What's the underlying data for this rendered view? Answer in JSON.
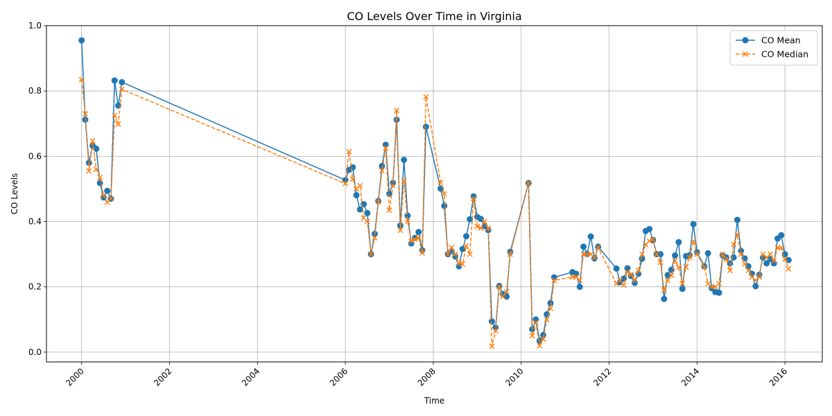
{
  "chart_data": {
    "type": "line",
    "title": "CO Levels Over Time in Virginia",
    "xlabel": "Time",
    "ylabel": "CO Levels",
    "xlim": [
      1999.2,
      2016.85
    ],
    "ylim": [
      -0.03,
      1.0
    ],
    "x_ticks": [
      "2000",
      "2002",
      "2004",
      "2006",
      "2008",
      "2010",
      "2012",
      "2014",
      "2016"
    ],
    "y_ticks": [
      "0.0",
      "0.2",
      "0.4",
      "0.6",
      "0.8",
      "1.0"
    ],
    "grid": true,
    "legend_position": "top-right",
    "series": [
      {
        "name": "CO Mean",
        "color": "#1f77b4",
        "marker": "circle",
        "line_style": "solid",
        "points": [
          [
            2000.0,
            0.955
          ],
          [
            2000.083,
            0.712
          ],
          [
            2000.167,
            0.58
          ],
          [
            2000.25,
            0.632
          ],
          [
            2000.333,
            0.623
          ],
          [
            2000.417,
            0.518
          ],
          [
            2000.5,
            0.474
          ],
          [
            2000.583,
            0.494
          ],
          [
            2000.667,
            0.47
          ],
          [
            2000.75,
            0.832
          ],
          [
            2000.833,
            0.755
          ],
          [
            2000.917,
            0.827
          ],
          [
            2006.0,
            0.527
          ],
          [
            2006.083,
            0.558
          ],
          [
            2006.167,
            0.566
          ],
          [
            2006.25,
            0.481
          ],
          [
            2006.333,
            0.437
          ],
          [
            2006.417,
            0.453
          ],
          [
            2006.5,
            0.426
          ],
          [
            2006.583,
            0.3
          ],
          [
            2006.667,
            0.362
          ],
          [
            2006.75,
            0.463
          ],
          [
            2006.833,
            0.57
          ],
          [
            2006.917,
            0.635
          ],
          [
            2007.0,
            0.485
          ],
          [
            2007.083,
            0.518
          ],
          [
            2007.167,
            0.712
          ],
          [
            2007.25,
            0.388
          ],
          [
            2007.333,
            0.589
          ],
          [
            2007.417,
            0.418
          ],
          [
            2007.5,
            0.333
          ],
          [
            2007.583,
            0.35
          ],
          [
            2007.667,
            0.368
          ],
          [
            2007.75,
            0.312
          ],
          [
            2007.833,
            0.69
          ],
          [
            2008.167,
            0.501
          ],
          [
            2008.25,
            0.448
          ],
          [
            2008.333,
            0.3
          ],
          [
            2008.417,
            0.31
          ],
          [
            2008.5,
            0.293
          ],
          [
            2008.583,
            0.263
          ],
          [
            2008.667,
            0.316
          ],
          [
            2008.75,
            0.355
          ],
          [
            2008.833,
            0.407
          ],
          [
            2008.917,
            0.477
          ],
          [
            2009.0,
            0.414
          ],
          [
            2009.083,
            0.408
          ],
          [
            2009.167,
            0.386
          ],
          [
            2009.25,
            0.374
          ],
          [
            2009.333,
            0.094
          ],
          [
            2009.417,
            0.075
          ],
          [
            2009.5,
            0.203
          ],
          [
            2009.583,
            0.178
          ],
          [
            2009.667,
            0.17
          ],
          [
            2009.75,
            0.307
          ],
          [
            2010.167,
            0.518
          ],
          [
            2010.25,
            0.07
          ],
          [
            2010.333,
            0.1
          ],
          [
            2010.417,
            0.035
          ],
          [
            2010.5,
            0.052
          ],
          [
            2010.583,
            0.116
          ],
          [
            2010.667,
            0.15
          ],
          [
            2010.75,
            0.229
          ],
          [
            2011.167,
            0.245
          ],
          [
            2011.25,
            0.24
          ],
          [
            2011.333,
            0.2
          ],
          [
            2011.417,
            0.323
          ],
          [
            2011.5,
            0.301
          ],
          [
            2011.583,
            0.354
          ],
          [
            2011.667,
            0.287
          ],
          [
            2011.75,
            0.323
          ],
          [
            2012.167,
            0.256
          ],
          [
            2012.25,
            0.214
          ],
          [
            2012.333,
            0.225
          ],
          [
            2012.417,
            0.257
          ],
          [
            2012.5,
            0.233
          ],
          [
            2012.583,
            0.212
          ],
          [
            2012.667,
            0.24
          ],
          [
            2012.75,
            0.286
          ],
          [
            2012.833,
            0.371
          ],
          [
            2012.917,
            0.377
          ],
          [
            2013.0,
            0.343
          ],
          [
            2013.083,
            0.3
          ],
          [
            2013.167,
            0.3
          ],
          [
            2013.25,
            0.163
          ],
          [
            2013.333,
            0.236
          ],
          [
            2013.417,
            0.252
          ],
          [
            2013.5,
            0.296
          ],
          [
            2013.583,
            0.337
          ],
          [
            2013.667,
            0.194
          ],
          [
            2013.75,
            0.294
          ],
          [
            2013.833,
            0.297
          ],
          [
            2013.917,
            0.392
          ],
          [
            2014.0,
            0.306
          ],
          [
            2014.167,
            0.263
          ],
          [
            2014.25,
            0.303
          ],
          [
            2014.333,
            0.196
          ],
          [
            2014.417,
            0.184
          ],
          [
            2014.5,
            0.182
          ],
          [
            2014.583,
            0.296
          ],
          [
            2014.667,
            0.29
          ],
          [
            2014.75,
            0.272
          ],
          [
            2014.833,
            0.29
          ],
          [
            2014.917,
            0.405
          ],
          [
            2015.0,
            0.31
          ],
          [
            2015.083,
            0.287
          ],
          [
            2015.167,
            0.263
          ],
          [
            2015.25,
            0.24
          ],
          [
            2015.333,
            0.202
          ],
          [
            2015.417,
            0.237
          ],
          [
            2015.5,
            0.29
          ],
          [
            2015.583,
            0.272
          ],
          [
            2015.667,
            0.285
          ],
          [
            2015.75,
            0.272
          ],
          [
            2015.833,
            0.348
          ],
          [
            2015.917,
            0.358
          ],
          [
            2016.0,
            0.3
          ],
          [
            2016.083,
            0.282
          ]
        ]
      },
      {
        "name": "CO Median",
        "color": "#ff7f0e",
        "marker": "x",
        "line_style": "dashed",
        "points": [
          [
            2000.0,
            0.835
          ],
          [
            2000.083,
            0.73
          ],
          [
            2000.167,
            0.555
          ],
          [
            2000.25,
            0.647
          ],
          [
            2000.333,
            0.56
          ],
          [
            2000.417,
            0.535
          ],
          [
            2000.5,
            0.48
          ],
          [
            2000.583,
            0.459
          ],
          [
            2000.667,
            0.47
          ],
          [
            2000.75,
            0.725
          ],
          [
            2000.833,
            0.698
          ],
          [
            2000.917,
            0.805
          ],
          [
            2006.0,
            0.516
          ],
          [
            2006.083,
            0.614
          ],
          [
            2006.167,
            0.53
          ],
          [
            2006.25,
            0.5
          ],
          [
            2006.333,
            0.51
          ],
          [
            2006.417,
            0.411
          ],
          [
            2006.5,
            0.4
          ],
          [
            2006.583,
            0.3
          ],
          [
            2006.667,
            0.35
          ],
          [
            2006.75,
            0.46
          ],
          [
            2006.833,
            0.556
          ],
          [
            2006.917,
            0.625
          ],
          [
            2007.0,
            0.435
          ],
          [
            2007.083,
            0.51
          ],
          [
            2007.167,
            0.74
          ],
          [
            2007.25,
            0.373
          ],
          [
            2007.333,
            0.525
          ],
          [
            2007.417,
            0.4
          ],
          [
            2007.5,
            0.34
          ],
          [
            2007.583,
            0.346
          ],
          [
            2007.667,
            0.35
          ],
          [
            2007.75,
            0.304
          ],
          [
            2007.833,
            0.782
          ],
          [
            2008.167,
            0.52
          ],
          [
            2008.25,
            0.485
          ],
          [
            2008.333,
            0.3
          ],
          [
            2008.417,
            0.32
          ],
          [
            2008.5,
            0.3
          ],
          [
            2008.583,
            0.272
          ],
          [
            2008.667,
            0.27
          ],
          [
            2008.75,
            0.325
          ],
          [
            2008.833,
            0.3
          ],
          [
            2008.917,
            0.47
          ],
          [
            2009.0,
            0.385
          ],
          [
            2009.083,
            0.38
          ],
          [
            2009.167,
            0.4
          ],
          [
            2009.25,
            0.38
          ],
          [
            2009.333,
            0.018
          ],
          [
            2009.417,
            0.065
          ],
          [
            2009.5,
            0.2
          ],
          [
            2009.583,
            0.17
          ],
          [
            2009.667,
            0.185
          ],
          [
            2009.75,
            0.3
          ],
          [
            2010.167,
            0.518
          ],
          [
            2010.25,
            0.05
          ],
          [
            2010.333,
            0.09
          ],
          [
            2010.417,
            0.02
          ],
          [
            2010.5,
            0.04
          ],
          [
            2010.583,
            0.1
          ],
          [
            2010.667,
            0.134
          ],
          [
            2010.75,
            0.22
          ],
          [
            2011.167,
            0.23
          ],
          [
            2011.25,
            0.23
          ],
          [
            2011.333,
            0.22
          ],
          [
            2011.417,
            0.3
          ],
          [
            2011.5,
            0.3
          ],
          [
            2011.583,
            0.3
          ],
          [
            2011.667,
            0.29
          ],
          [
            2011.75,
            0.32
          ],
          [
            2012.167,
            0.21
          ],
          [
            2012.25,
            0.22
          ],
          [
            2012.333,
            0.205
          ],
          [
            2012.417,
            0.245
          ],
          [
            2012.5,
            0.238
          ],
          [
            2012.583,
            0.22
          ],
          [
            2012.667,
            0.25
          ],
          [
            2012.75,
            0.3
          ],
          [
            2012.833,
            0.33
          ],
          [
            2012.917,
            0.34
          ],
          [
            2013.0,
            0.345
          ],
          [
            2013.083,
            0.3
          ],
          [
            2013.167,
            0.275
          ],
          [
            2013.25,
            0.19
          ],
          [
            2013.333,
            0.22
          ],
          [
            2013.417,
            0.235
          ],
          [
            2013.5,
            0.28
          ],
          [
            2013.583,
            0.26
          ],
          [
            2013.667,
            0.21
          ],
          [
            2013.75,
            0.26
          ],
          [
            2013.833,
            0.29
          ],
          [
            2013.917,
            0.34
          ],
          [
            2014.0,
            0.3
          ],
          [
            2014.167,
            0.26
          ],
          [
            2014.25,
            0.21
          ],
          [
            2014.333,
            0.2
          ],
          [
            2014.417,
            0.2
          ],
          [
            2014.5,
            0.21
          ],
          [
            2014.583,
            0.3
          ],
          [
            2014.667,
            0.285
          ],
          [
            2014.75,
            0.25
          ],
          [
            2014.833,
            0.33
          ],
          [
            2014.917,
            0.36
          ],
          [
            2015.0,
            0.3
          ],
          [
            2015.083,
            0.27
          ],
          [
            2015.167,
            0.25
          ],
          [
            2015.25,
            0.23
          ],
          [
            2015.333,
            0.22
          ],
          [
            2015.417,
            0.23
          ],
          [
            2015.5,
            0.3
          ],
          [
            2015.583,
            0.29
          ],
          [
            2015.667,
            0.3
          ],
          [
            2015.75,
            0.28
          ],
          [
            2015.833,
            0.32
          ],
          [
            2015.917,
            0.32
          ],
          [
            2016.0,
            0.285
          ],
          [
            2016.083,
            0.255
          ]
        ]
      }
    ]
  }
}
